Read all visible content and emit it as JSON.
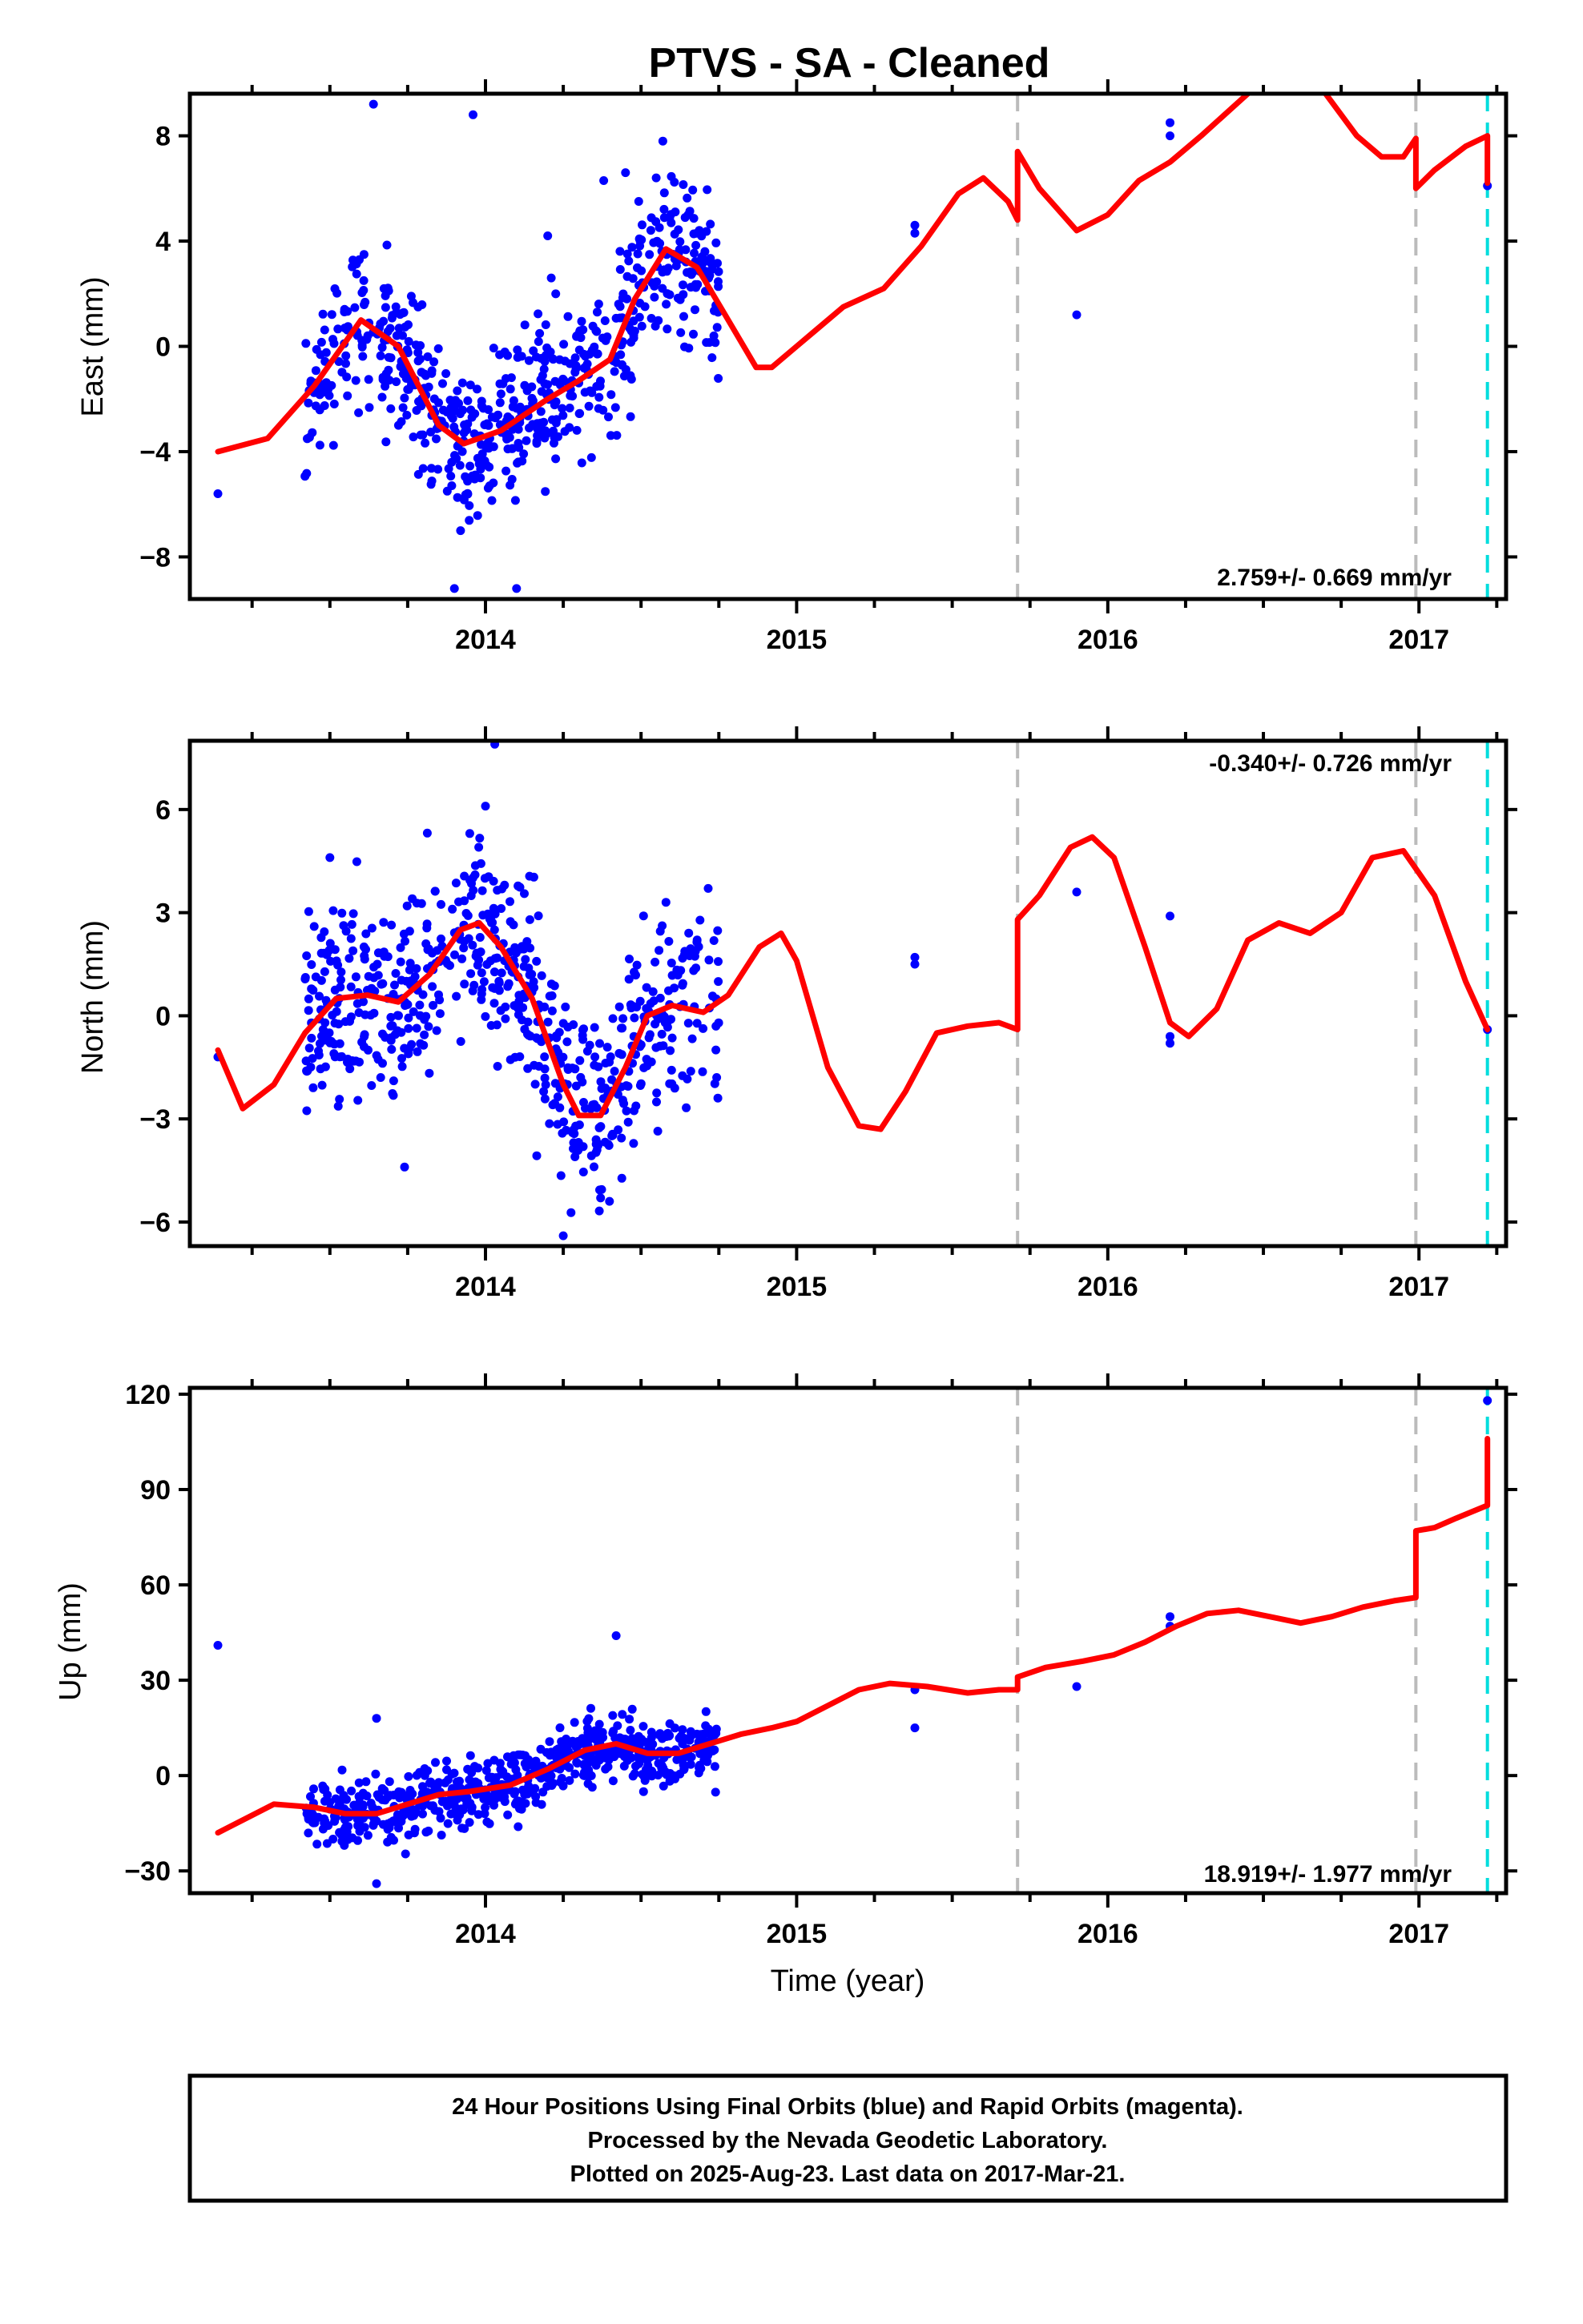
{
  "title": "PTVS  - SA - Cleaned",
  "xlabel": "Time (year)",
  "footer": {
    "line1": "24 Hour Positions Using Final Orbits (blue) and Rapid Orbits (magenta).",
    "line2": "Processed by the Nevada Geodetic Laboratory.",
    "line3": "Plotted on 2025-Aug-23. Last data on 2017-Mar-21."
  },
  "colors": {
    "data_points": "#0000ff",
    "model_line": "#ff0000",
    "equipment_change": "#bbbbbb",
    "last_data": "#00dddd"
  },
  "chart_data": [
    {
      "type": "scatter",
      "component": "east",
      "ylabel": "East (mm)",
      "rate_label": "2.759+/- 0.669 mm/yr",
      "xlim": [
        2013.05,
        2017.28
      ],
      "ylim": [
        -9.6,
        9.6
      ],
      "xticks": [
        2014,
        2015,
        2016,
        2017
      ],
      "yticks": [
        -8,
        -4,
        0,
        4,
        8
      ],
      "vlines_gray": [
        2015.71,
        2016.99
      ],
      "vline_cyan": 2017.22,
      "model": [
        [
          2013.14,
          -4.0
        ],
        [
          2013.3,
          -3.5
        ],
        [
          2013.45,
          -1.5
        ],
        [
          2013.6,
          1.0
        ],
        [
          2013.72,
          0.0
        ],
        [
          2013.85,
          -3.0
        ],
        [
          2013.93,
          -3.7
        ],
        [
          2014.05,
          -3.2
        ],
        [
          2014.2,
          -2.0
        ],
        [
          2014.3,
          -1.3
        ],
        [
          2014.4,
          -0.5
        ],
        [
          2014.48,
          1.8
        ],
        [
          2014.58,
          3.7
        ],
        [
          2014.68,
          3.0
        ],
        [
          2014.78,
          1.0
        ],
        [
          2014.87,
          -0.8
        ],
        [
          2014.92,
          -0.8
        ],
        [
          2015.0,
          0.0
        ],
        [
          2015.15,
          1.5
        ],
        [
          2015.28,
          2.2
        ],
        [
          2015.4,
          3.8
        ],
        [
          2015.52,
          5.8
        ],
        [
          2015.6,
          6.4
        ],
        [
          2015.68,
          5.5
        ],
        [
          2015.71,
          4.8
        ],
        [
          2015.71,
          7.4
        ],
        [
          2015.78,
          6.0
        ],
        [
          2015.9,
          4.4
        ],
        [
          2016.0,
          5.0
        ],
        [
          2016.1,
          6.3
        ],
        [
          2016.2,
          7.0
        ],
        [
          2016.3,
          8.0
        ],
        [
          2016.45,
          9.6
        ]
      ],
      "model2": [
        [
          2016.7,
          9.6
        ],
        [
          2016.8,
          8.0
        ],
        [
          2016.88,
          7.2
        ],
        [
          2016.95,
          7.2
        ],
        [
          2016.99,
          7.9
        ],
        [
          2016.99,
          6.0
        ],
        [
          2017.05,
          6.7
        ],
        [
          2017.15,
          7.6
        ],
        [
          2017.22,
          8.0
        ],
        [
          2017.22,
          6.2
        ]
      ],
      "rnd": {
        "seed": 11,
        "std": 1.5
      },
      "outliers": [
        [
          2013.14,
          -5.6
        ],
        [
          2013.64,
          9.2
        ],
        [
          2013.96,
          8.8
        ],
        [
          2013.9,
          -9.2
        ],
        [
          2014.1,
          -9.2
        ],
        [
          2013.92,
          -7.0
        ],
        [
          2014.2,
          4.2
        ],
        [
          2014.38,
          6.3
        ],
        [
          2014.45,
          6.6
        ],
        [
          2014.57,
          7.8
        ],
        [
          2015.38,
          4.6
        ],
        [
          2015.38,
          4.3
        ],
        [
          2015.9,
          1.2
        ],
        [
          2016.2,
          8.5
        ],
        [
          2016.2,
          8.0
        ],
        [
          2017.22,
          6.1
        ]
      ]
    },
    {
      "type": "scatter",
      "component": "north",
      "ylabel": "North (mm)",
      "rate_label": "-0.340+/- 0.726 mm/yr",
      "xlim": [
        2013.05,
        2017.28
      ],
      "ylim": [
        -6.7,
        8.0
      ],
      "xticks": [
        2014,
        2015,
        2016,
        2017
      ],
      "yticks": [
        -6,
        -3,
        0,
        3,
        6
      ],
      "vlines_gray": [
        2015.71,
        2016.99
      ],
      "vline_cyan": 2017.22,
      "model": [
        [
          2013.14,
          -1.0
        ],
        [
          2013.22,
          -2.7
        ],
        [
          2013.32,
          -2.0
        ],
        [
          2013.42,
          -0.5
        ],
        [
          2013.52,
          0.5
        ],
        [
          2013.62,
          0.6
        ],
        [
          2013.72,
          0.4
        ],
        [
          2013.82,
          1.2
        ],
        [
          2013.92,
          2.5
        ],
        [
          2013.98,
          2.7
        ],
        [
          2014.05,
          2.0
        ],
        [
          2014.15,
          0.5
        ],
        [
          2014.25,
          -2.0
        ],
        [
          2014.3,
          -2.9
        ],
        [
          2014.37,
          -2.9
        ],
        [
          2014.45,
          -1.5
        ],
        [
          2014.52,
          0.0
        ],
        [
          2014.6,
          0.3
        ],
        [
          2014.7,
          0.1
        ],
        [
          2014.78,
          0.6
        ],
        [
          2014.88,
          2.0
        ],
        [
          2014.95,
          2.4
        ],
        [
          2015.0,
          1.6
        ],
        [
          2015.1,
          -1.5
        ],
        [
          2015.2,
          -3.2
        ],
        [
          2015.27,
          -3.3
        ],
        [
          2015.35,
          -2.2
        ],
        [
          2015.45,
          -0.5
        ],
        [
          2015.55,
          -0.3
        ],
        [
          2015.65,
          -0.2
        ],
        [
          2015.71,
          -0.4
        ],
        [
          2015.71,
          2.8
        ],
        [
          2015.78,
          3.5
        ],
        [
          2015.88,
          4.9
        ],
        [
          2015.95,
          5.2
        ],
        [
          2016.02,
          4.6
        ],
        [
          2016.12,
          2.0
        ],
        [
          2016.2,
          -0.2
        ],
        [
          2016.26,
          -0.6
        ],
        [
          2016.35,
          0.2
        ],
        [
          2016.45,
          2.2
        ],
        [
          2016.55,
          2.7
        ],
        [
          2016.65,
          2.4
        ],
        [
          2016.75,
          3.0
        ],
        [
          2016.85,
          4.6
        ],
        [
          2016.95,
          4.8
        ],
        [
          2017.05,
          3.5
        ],
        [
          2017.15,
          1.0
        ],
        [
          2017.22,
          -0.4
        ]
      ],
      "model2": [],
      "rnd": {
        "seed": 23,
        "std": 1.4
      },
      "outliers": [
        [
          2013.14,
          -1.2
        ],
        [
          2013.5,
          4.6
        ],
        [
          2013.74,
          -4.4
        ],
        [
          2014.0,
          6.1
        ],
        [
          2014.03,
          7.9
        ],
        [
          2014.25,
          -6.4
        ],
        [
          2014.37,
          -5.3
        ],
        [
          2014.58,
          3.3
        ],
        [
          2015.38,
          1.7
        ],
        [
          2015.38,
          1.5
        ],
        [
          2015.9,
          3.6
        ],
        [
          2016.2,
          2.9
        ],
        [
          2016.2,
          -0.6
        ],
        [
          2016.2,
          -0.8
        ],
        [
          2017.22,
          -0.4
        ]
      ]
    },
    {
      "type": "scatter",
      "component": "up",
      "ylabel": "Up (mm)",
      "rate_label": "18.919+/- 1.977 mm/yr",
      "xlim": [
        2013.05,
        2017.28
      ],
      "ylim": [
        -37,
        122
      ],
      "xticks": [
        2014,
        2015,
        2016,
        2017
      ],
      "yticks": [
        -30,
        0,
        30,
        60,
        90,
        120
      ],
      "vlines_gray": [
        2015.71,
        2016.99
      ],
      "vline_cyan": 2017.22,
      "model": [
        [
          2013.14,
          -18
        ],
        [
          2013.22,
          -14
        ],
        [
          2013.32,
          -9
        ],
        [
          2013.45,
          -10
        ],
        [
          2013.55,
          -12
        ],
        [
          2013.65,
          -12
        ],
        [
          2013.75,
          -9
        ],
        [
          2013.85,
          -6
        ],
        [
          2013.95,
          -5
        ],
        [
          2014.08,
          -3
        ],
        [
          2014.2,
          2
        ],
        [
          2014.32,
          8
        ],
        [
          2014.42,
          10
        ],
        [
          2014.52,
          7
        ],
        [
          2014.62,
          7
        ],
        [
          2014.72,
          10
        ],
        [
          2014.82,
          13
        ],
        [
          2014.92,
          15
        ],
        [
          2015.0,
          17
        ],
        [
          2015.1,
          22
        ],
        [
          2015.2,
          27
        ],
        [
          2015.3,
          29
        ],
        [
          2015.42,
          28
        ],
        [
          2015.55,
          26
        ],
        [
          2015.65,
          27
        ],
        [
          2015.71,
          27
        ],
        [
          2015.71,
          31
        ],
        [
          2015.8,
          34
        ],
        [
          2015.92,
          36
        ],
        [
          2016.02,
          38
        ],
        [
          2016.12,
          42
        ],
        [
          2016.22,
          47
        ],
        [
          2016.32,
          51
        ],
        [
          2016.42,
          52
        ],
        [
          2016.52,
          50
        ],
        [
          2016.62,
          48
        ],
        [
          2016.72,
          50
        ],
        [
          2016.82,
          53
        ],
        [
          2016.92,
          55
        ],
        [
          2016.99,
          56
        ],
        [
          2016.99,
          77
        ],
        [
          2017.05,
          78
        ],
        [
          2017.12,
          81
        ],
        [
          2017.22,
          85
        ],
        [
          2017.22,
          106
        ]
      ],
      "model2": [],
      "rnd": {
        "seed": 37,
        "std": 5.0
      },
      "outliers": [
        [
          2013.14,
          41
        ],
        [
          2013.65,
          18
        ],
        [
          2013.65,
          -34
        ],
        [
          2014.42,
          44
        ],
        [
          2015.38,
          27
        ],
        [
          2015.38,
          15
        ],
        [
          2015.9,
          28
        ],
        [
          2016.2,
          50
        ],
        [
          2016.2,
          47
        ],
        [
          2017.22,
          118
        ]
      ]
    }
  ]
}
